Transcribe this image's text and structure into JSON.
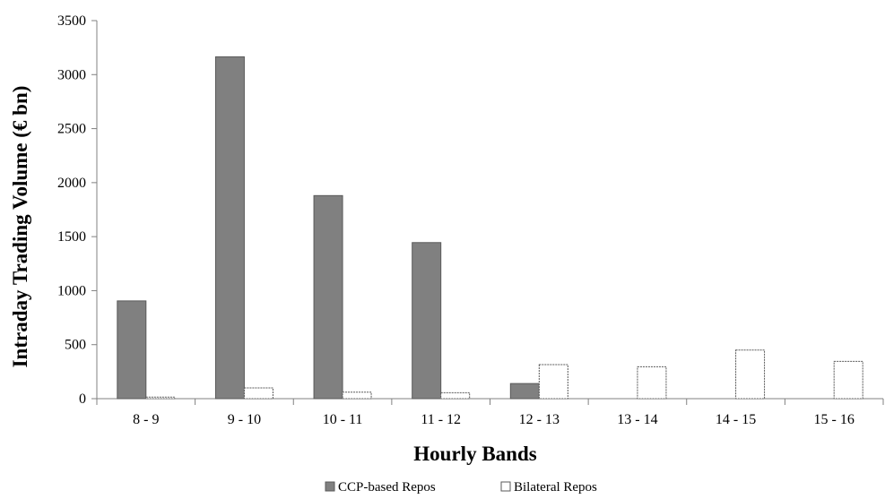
{
  "chart_data": {
    "type": "bar",
    "title": "",
    "xlabel": "Hourly Bands",
    "ylabel": "Intraday Trading Volume (€ bn)",
    "ylim": [
      0,
      3500
    ],
    "yticks": [
      0,
      500,
      1000,
      1500,
      2000,
      2500,
      3000,
      3500
    ],
    "categories": [
      "8 - 9",
      "9 - 10",
      "10 - 11",
      "11 - 12",
      "12 - 13",
      "13 - 14",
      "14 - 15",
      "15 - 16"
    ],
    "series": [
      {
        "name": "CCP-based Repos",
        "color": "#808080",
        "values": [
          905,
          3165,
          1880,
          1445,
          140,
          0,
          0,
          0
        ]
      },
      {
        "name": "Bilateral Repos",
        "color": "#ffffff",
        "values": [
          15,
          100,
          60,
          55,
          315,
          295,
          450,
          345
        ]
      }
    ],
    "grid": false,
    "legend_position": "bottom-center"
  }
}
